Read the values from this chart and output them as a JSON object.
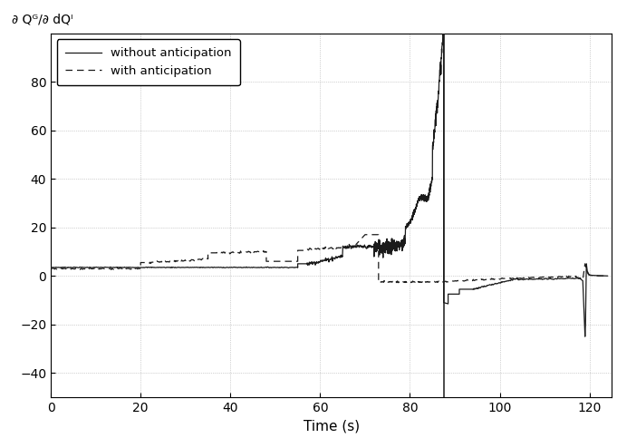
{
  "title": "",
  "ylabel": "∂ Qᴳ/∂ dQᴵ",
  "xlabel": "Time (s)",
  "xlim": [
    0,
    125
  ],
  "ylim": [
    -50,
    100
  ],
  "yticks": [
    -40,
    -20,
    0,
    20,
    40,
    60,
    80
  ],
  "xticks": [
    0,
    20,
    40,
    60,
    80,
    100,
    120
  ],
  "vertical_line_x": 87.5,
  "legend_labels": [
    "without anticipation",
    "with anticipation"
  ],
  "background_color": "#ffffff",
  "grid_color": "#aaaaaa",
  "line_color": "#1a1a1a"
}
